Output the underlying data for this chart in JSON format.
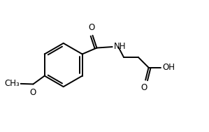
{
  "bg_color": "#ffffff",
  "line_color": "#000000",
  "text_color": "#000000",
  "label_NH": "NH",
  "label_O1": "O",
  "label_O2": "O",
  "label_OH": "OH",
  "label_O_meth": "O",
  "label_CH3": "CH₃",
  "figw": 2.99,
  "figh": 1.89,
  "dpi": 100,
  "lw": 1.4,
  "font_size": 8.5
}
